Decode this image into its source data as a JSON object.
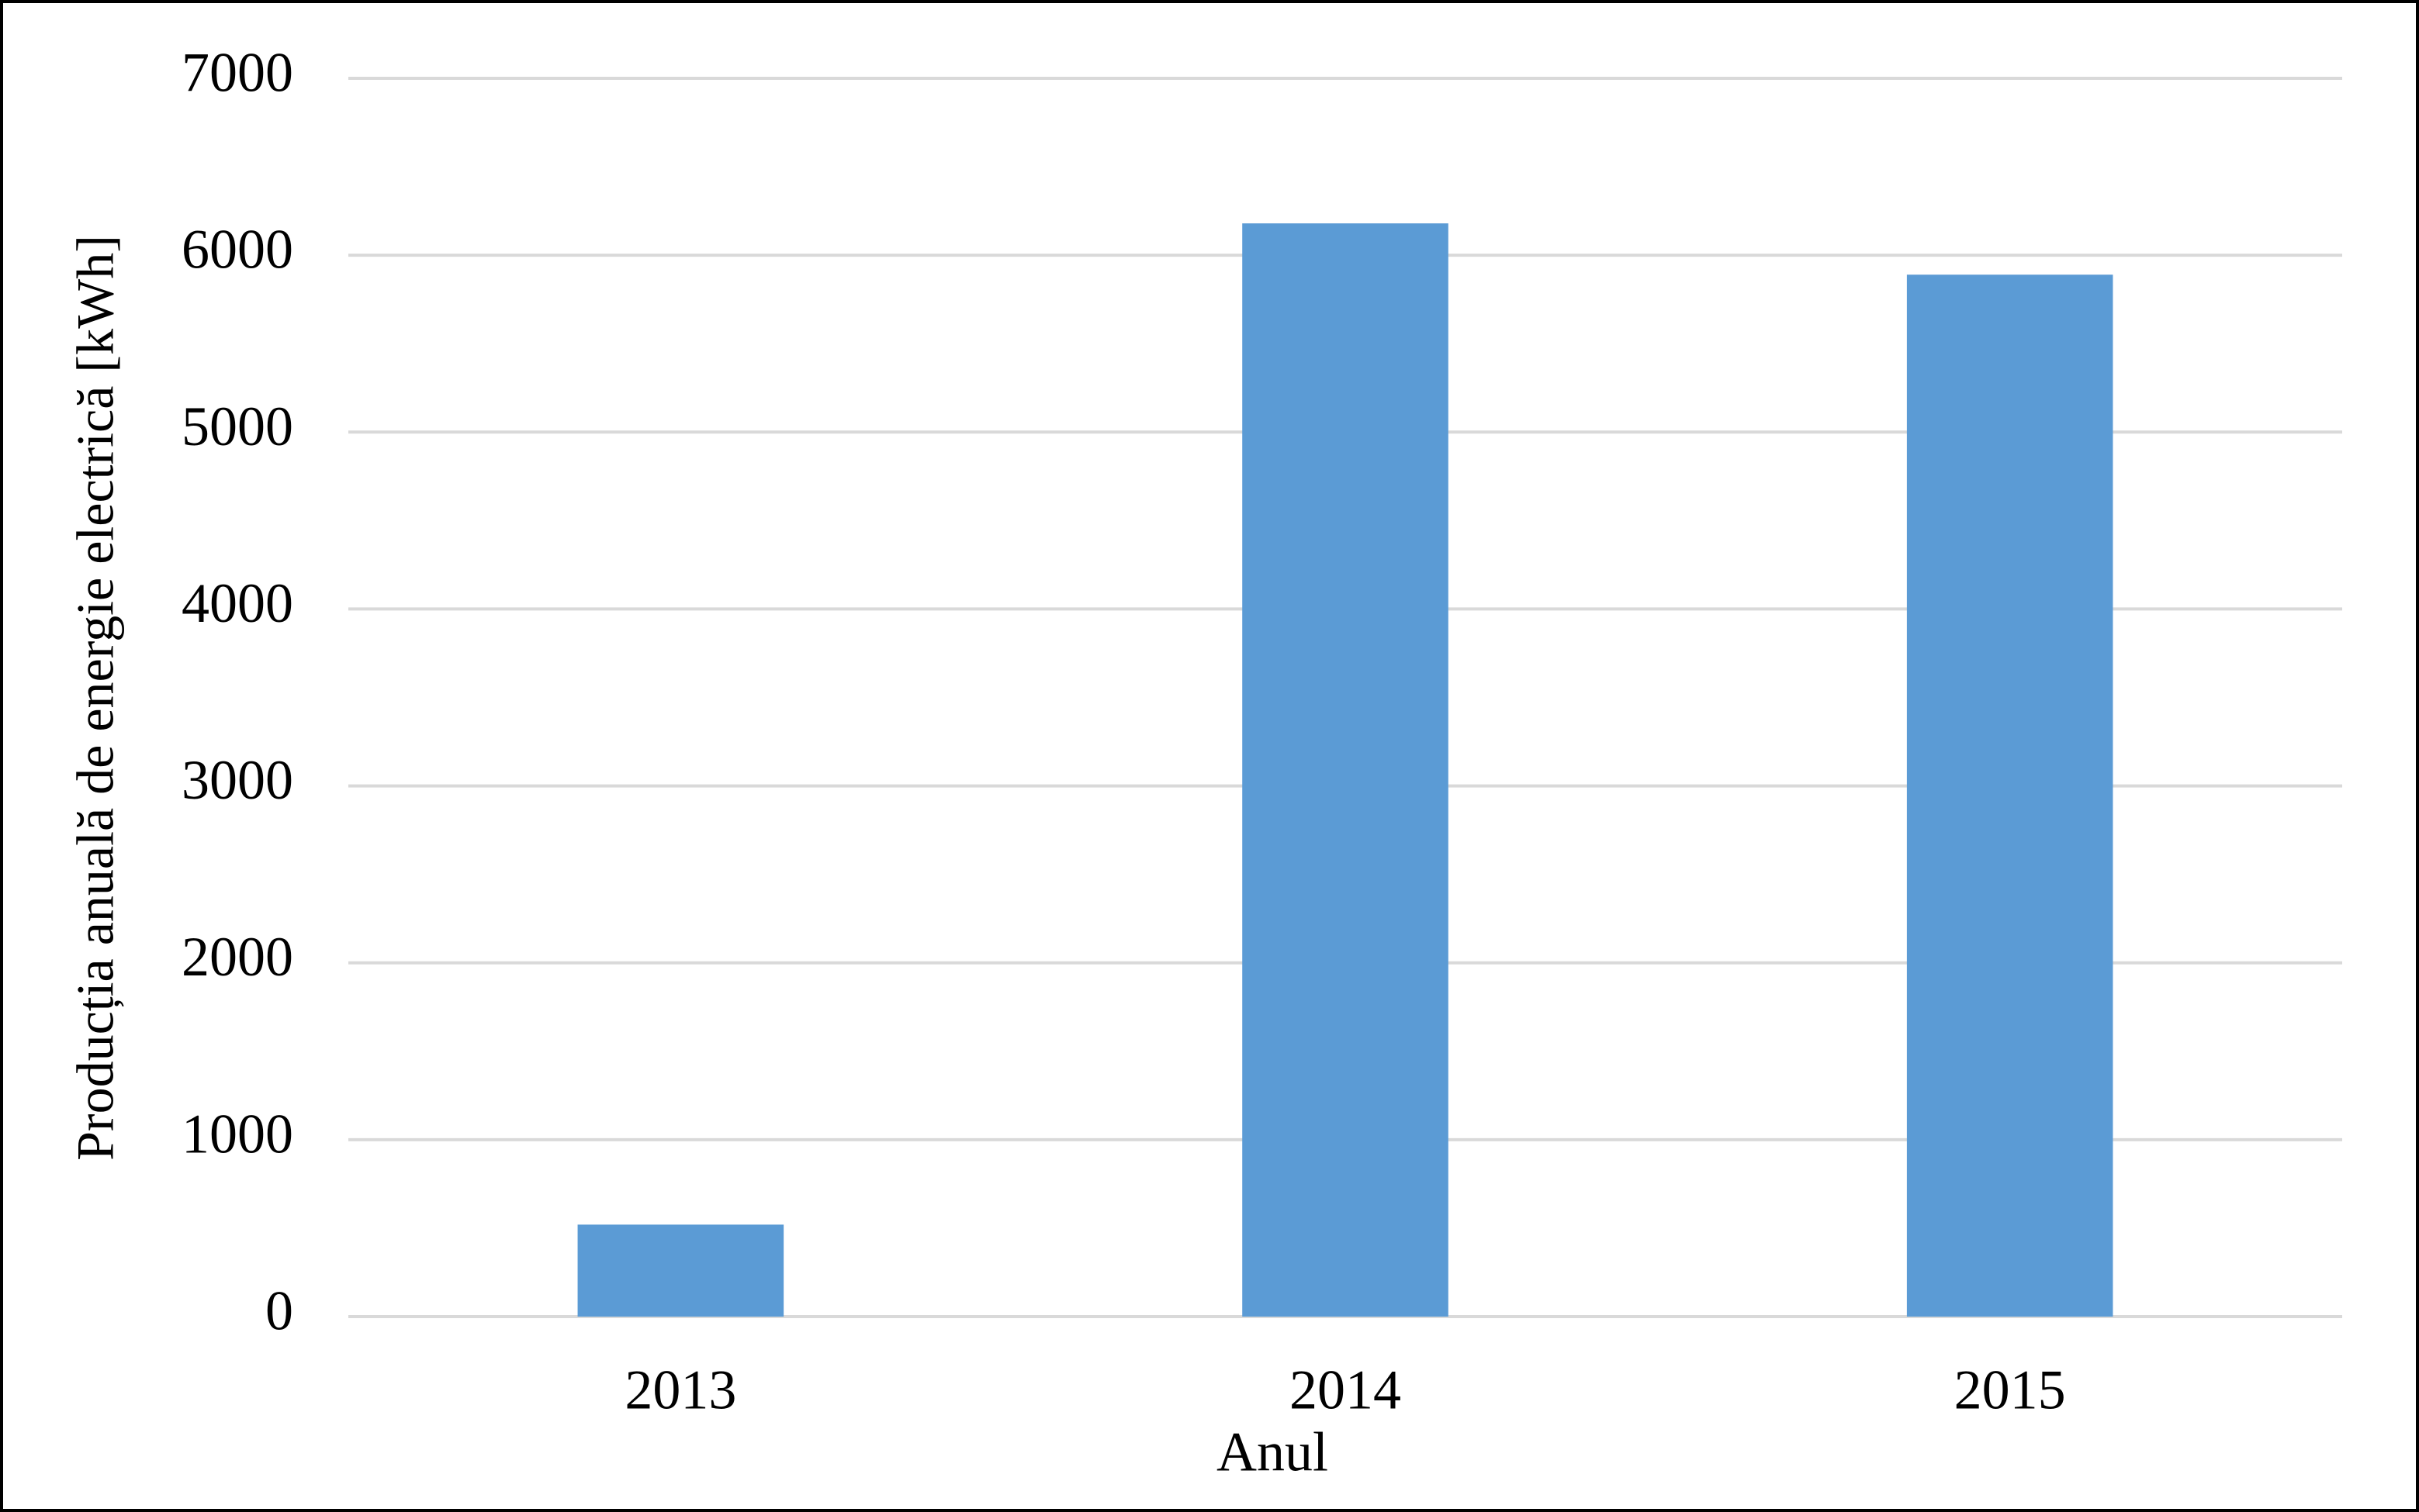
{
  "chart_data": {
    "type": "bar",
    "x_label": "Anul",
    "y_label": "Producția anuală de energie electrică [kWh]",
    "categories": [
      "2013",
      "2014",
      "2015"
    ],
    "values": [
      520,
      6180,
      5890
    ],
    "color": "#5b9bd5",
    "ylim": [
      0,
      7000
    ],
    "yticks": [
      0,
      1000,
      2000,
      3000,
      4000,
      5000,
      6000,
      7000
    ],
    "grid": true
  }
}
